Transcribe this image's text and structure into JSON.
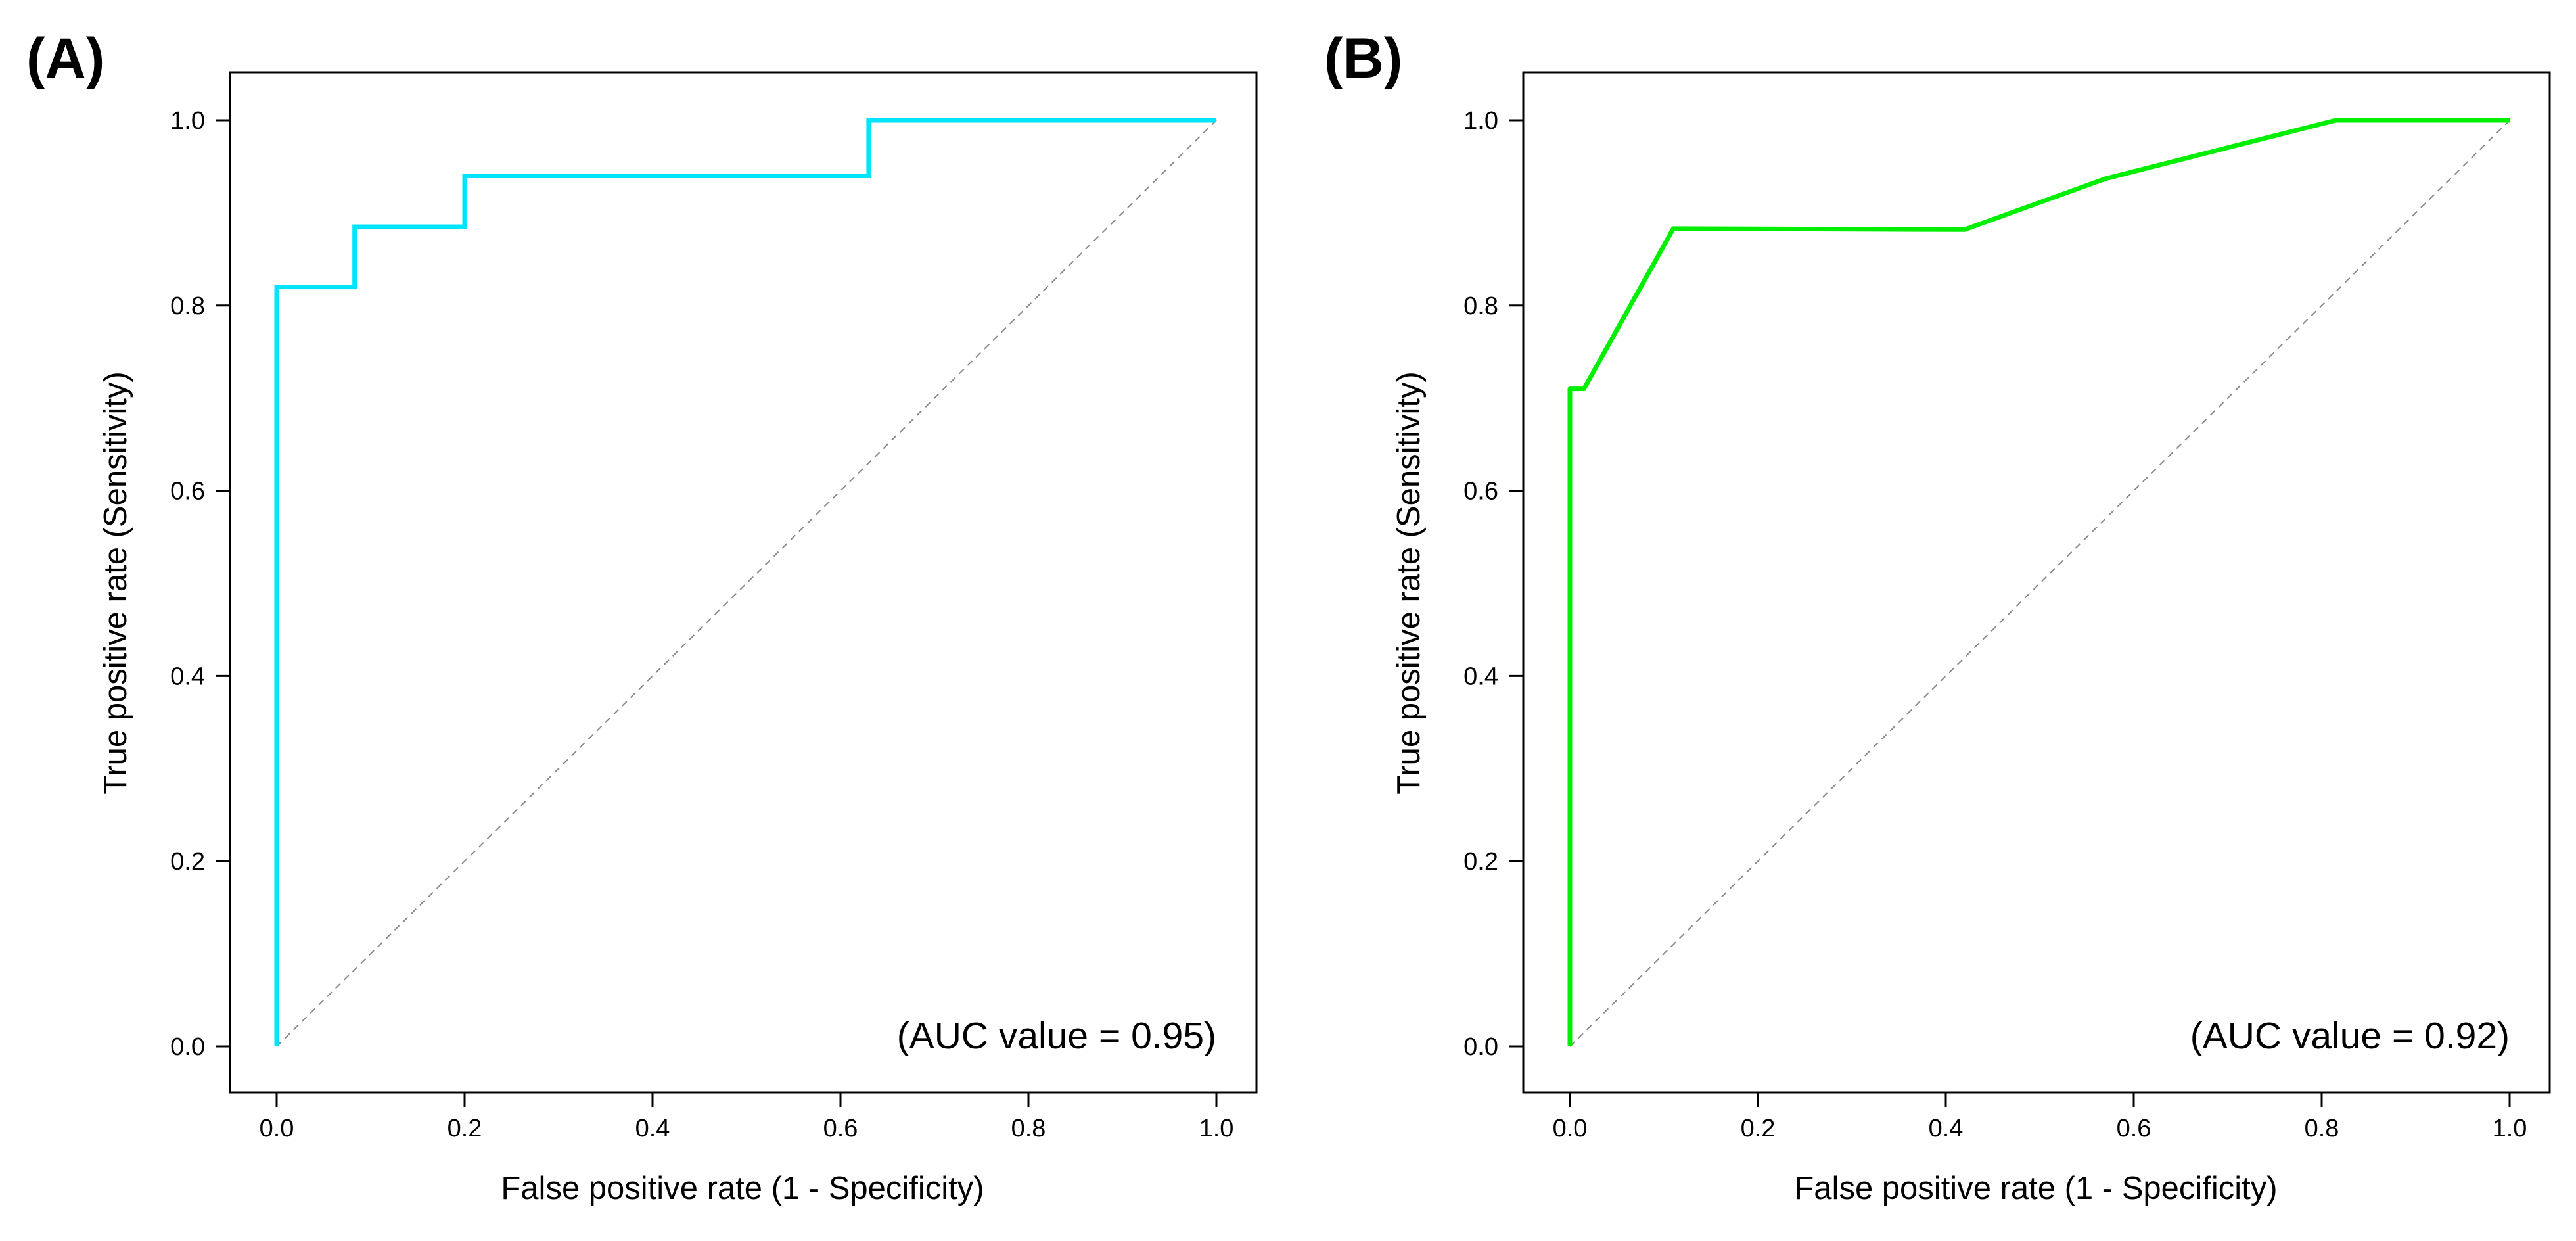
{
  "chart_data": [
    {
      "type": "line",
      "panel_label": "(A)",
      "xlabel": "False positive rate (1 - Specificity)",
      "ylabel": "True positive rate (Sensitivity)",
      "xlim": [
        0,
        1
      ],
      "ylim": [
        0,
        1
      ],
      "xticks": [
        "0.0",
        "0.2",
        "0.4",
        "0.6",
        "0.8",
        "1.0"
      ],
      "yticks": [
        "0.0",
        "0.2",
        "0.4",
        "0.6",
        "0.8",
        "1.0"
      ],
      "grid": false,
      "annotation": "(AUC value = 0.95)",
      "series": [
        {
          "color": "#00e5ff",
          "x": [
            0,
            0,
            0.083,
            0.083,
            0.2,
            0.2,
            0.63,
            0.63,
            1.0
          ],
          "y": [
            0,
            0.82,
            0.82,
            0.885,
            0.885,
            0.94,
            0.94,
            1.0,
            1.0
          ]
        }
      ],
      "reference_line": {
        "x": [
          0,
          1
        ],
        "y": [
          0,
          1
        ],
        "color": "#888888",
        "style": "dashed"
      }
    },
    {
      "type": "line",
      "panel_label": "(B)",
      "xlabel": "False positive rate (1 - Specificity)",
      "ylabel": "True positive rate (Sensitivity)",
      "xlim": [
        0,
        1
      ],
      "ylim": [
        0,
        1
      ],
      "xticks": [
        "0.0",
        "0.2",
        "0.4",
        "0.6",
        "0.8",
        "1.0"
      ],
      "yticks": [
        "0.0",
        "0.2",
        "0.4",
        "0.6",
        "0.8",
        "1.0"
      ],
      "grid": false,
      "annotation": "(AUC value = 0.92)",
      "series": [
        {
          "color": "#00ee00",
          "x": [
            0,
            0,
            0.015,
            0.11,
            0.42,
            0.57,
            0.815,
            1.0
          ],
          "y": [
            0,
            0.71,
            0.71,
            0.883,
            0.882,
            0.937,
            1.0,
            1.0
          ]
        }
      ],
      "reference_line": {
        "x": [
          0,
          1
        ],
        "y": [
          0,
          1
        ],
        "color": "#888888",
        "style": "dashed"
      }
    }
  ]
}
